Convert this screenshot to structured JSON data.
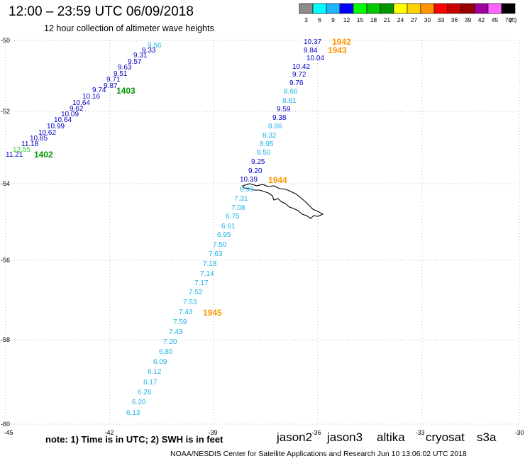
{
  "title": "12:00 – 23:59 UTC 06/09/2018",
  "subtitle": "12 hour collection of altimeter wave heights",
  "footnote": "note:  1) Time is in UTC;  2) SWH is in feet",
  "credit": "NOAA/NESDIS Center for Satellite Applications and Research    Jun 10 13:06:02 UTC 2018",
  "colors": {
    "grid": "#bdbdbd",
    "coast": "#000000"
  },
  "scale": {
    "unit": "(ft)",
    "bins": [
      {
        "label": "3",
        "color": "#8c8c8c"
      },
      {
        "label": "6",
        "color": "#00ffff"
      },
      {
        "label": "9",
        "color": "#1eb4ff"
      },
      {
        "label": "12",
        "color": "#0000ff"
      },
      {
        "label": "15",
        "color": "#00ff00"
      },
      {
        "label": "18",
        "color": "#00c800"
      },
      {
        "label": "21",
        "color": "#009600"
      },
      {
        "label": "24",
        "color": "#ffff00"
      },
      {
        "label": "27",
        "color": "#ffd200"
      },
      {
        "label": "30",
        "color": "#ff9600"
      },
      {
        "label": "33",
        "color": "#ff0000"
      },
      {
        "label": "36",
        "color": "#c80000"
      },
      {
        "label": "39",
        "color": "#960000"
      },
      {
        "label": "42",
        "color": "#a000a0"
      },
      {
        "label": "45",
        "color": "#ff64ff"
      },
      {
        "label": "70",
        "color": "#000000"
      }
    ]
  },
  "satellites": [
    {
      "name": "jason2",
      "color": "#0000ff"
    },
    {
      "name": "jason3",
      "color": "#009600"
    },
    {
      "name": "altika",
      "color": "#ff9600"
    },
    {
      "name": "cryosat",
      "color": "#c80000"
    },
    {
      "name": "s3a",
      "color": "#960000"
    }
  ],
  "axes": {
    "lon_labels": [
      "-45",
      "-42",
      "-39",
      "-36",
      "-33",
      "-30"
    ],
    "lat_labels": [
      "-50",
      "-52",
      "-54",
      "-56",
      "-58",
      "-60"
    ]
  },
  "chart_data": {
    "type": "scatter",
    "series": [
      {
        "satellite": "jason3",
        "time_labels": [
          "1402",
          "1403"
        ],
        "swh_ft": [
          "11.21",
          "11.18",
          "12.55",
          "10.85",
          "10.62",
          "10.99",
          "10.64",
          "10.09",
          "9.62",
          "10.64",
          "10.16",
          "9.74",
          "9.87",
          "9.71",
          "9.51",
          "9.63",
          "9.57",
          "9.31",
          "9.33",
          "9.56"
        ]
      },
      {
        "satellite": "altika",
        "time_labels": [
          "1942",
          "1943",
          "1944",
          "1945"
        ],
        "swh_ft": [
          "10.37",
          "9.84",
          "10.04",
          "10.42",
          "9.72",
          "9.76",
          "8.66",
          "8.81",
          "9.59",
          "9.38",
          "8.86",
          "8.32",
          "8.95",
          "8.50",
          "9.25",
          "9.20",
          "10.39",
          "6.99",
          "7.31",
          "7.08",
          "6.75",
          "6.61",
          "6.95",
          "7.50",
          "7.63",
          "7.18",
          "7.14",
          "7.17",
          "7.52",
          "7.53",
          "7.43",
          "7.59",
          "7.43",
          "7.20",
          "6.80",
          "6.09",
          "6.12",
          "6.17",
          "6.26",
          "6.20",
          "6.13"
        ]
      }
    ]
  }
}
